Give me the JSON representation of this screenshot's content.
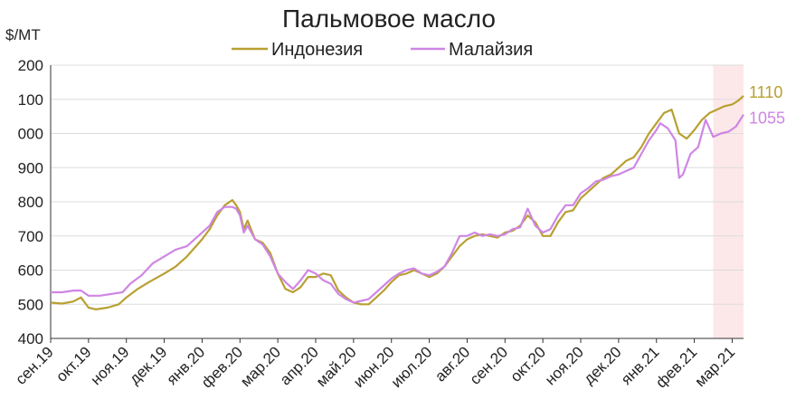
{
  "chart_data": {
    "type": "line",
    "title": "Пальмовое масло",
    "ylabel": "$/MT",
    "y_tick_labels": [
      "200",
      "100",
      "000",
      "900",
      "800",
      "700",
      "600",
      "500",
      "400"
    ],
    "ylim": [
      400,
      1200
    ],
    "x_tick_labels": [
      "сен.19",
      "окт.19",
      "ноя.19",
      "дек.19",
      "янв.20",
      "фев.20",
      "мар.20",
      "апр.20",
      "май.20",
      "июн.20",
      "июл.20",
      "авг.20",
      "сен.20",
      "окт.20",
      "ноя.20",
      "дек.20",
      "янв.21",
      "фев.21",
      "мар.21"
    ],
    "grid": "horizontal",
    "legend_position": "top",
    "highlight_region": {
      "from": 17.5,
      "to": 18.3,
      "color": "#fce8e8"
    },
    "series": [
      {
        "name": "Индонезия",
        "color": "#b8a032",
        "end_label": "1110",
        "points": [
          [
            0,
            505
          ],
          [
            0.3,
            502
          ],
          [
            0.6,
            508
          ],
          [
            0.8,
            520
          ],
          [
            1.0,
            490
          ],
          [
            1.2,
            485
          ],
          [
            1.5,
            490
          ],
          [
            1.8,
            500
          ],
          [
            2.0,
            520
          ],
          [
            2.3,
            545
          ],
          [
            2.6,
            565
          ],
          [
            3.0,
            590
          ],
          [
            3.3,
            610
          ],
          [
            3.6,
            640
          ],
          [
            4.0,
            690
          ],
          [
            4.2,
            720
          ],
          [
            4.4,
            760
          ],
          [
            4.6,
            790
          ],
          [
            4.8,
            805
          ],
          [
            4.9,
            790
          ],
          [
            5.0,
            770
          ],
          [
            5.1,
            720
          ],
          [
            5.2,
            745
          ],
          [
            5.4,
            690
          ],
          [
            5.6,
            680
          ],
          [
            5.8,
            650
          ],
          [
            6.0,
            590
          ],
          [
            6.2,
            545
          ],
          [
            6.4,
            535
          ],
          [
            6.6,
            550
          ],
          [
            6.8,
            580
          ],
          [
            7.0,
            580
          ],
          [
            7.2,
            590
          ],
          [
            7.4,
            585
          ],
          [
            7.6,
            540
          ],
          [
            7.8,
            520
          ],
          [
            8.0,
            505
          ],
          [
            8.2,
            500
          ],
          [
            8.4,
            500
          ],
          [
            8.6,
            520
          ],
          [
            8.8,
            540
          ],
          [
            9.0,
            565
          ],
          [
            9.2,
            585
          ],
          [
            9.4,
            590
          ],
          [
            9.6,
            600
          ],
          [
            9.8,
            590
          ],
          [
            10.0,
            580
          ],
          [
            10.2,
            590
          ],
          [
            10.4,
            610
          ],
          [
            10.6,
            640
          ],
          [
            10.8,
            670
          ],
          [
            11.0,
            690
          ],
          [
            11.2,
            700
          ],
          [
            11.4,
            705
          ],
          [
            11.6,
            700
          ],
          [
            11.8,
            695
          ],
          [
            12.0,
            710
          ],
          [
            12.2,
            715
          ],
          [
            12.4,
            730
          ],
          [
            12.6,
            760
          ],
          [
            12.8,
            740
          ],
          [
            13.0,
            700
          ],
          [
            13.2,
            700
          ],
          [
            13.4,
            740
          ],
          [
            13.6,
            770
          ],
          [
            13.8,
            775
          ],
          [
            14.0,
            810
          ],
          [
            14.2,
            830
          ],
          [
            14.4,
            850
          ],
          [
            14.6,
            870
          ],
          [
            14.8,
            880
          ],
          [
            15.0,
            900
          ],
          [
            15.2,
            920
          ],
          [
            15.4,
            930
          ],
          [
            15.6,
            960
          ],
          [
            15.8,
            1000
          ],
          [
            16.0,
            1030
          ],
          [
            16.2,
            1060
          ],
          [
            16.4,
            1070
          ],
          [
            16.6,
            1000
          ],
          [
            16.8,
            985
          ],
          [
            17.0,
            1010
          ],
          [
            17.2,
            1040
          ],
          [
            17.4,
            1060
          ],
          [
            17.6,
            1070
          ],
          [
            17.8,
            1080
          ],
          [
            18.0,
            1085
          ],
          [
            18.15,
            1095
          ],
          [
            18.3,
            1110
          ]
        ]
      },
      {
        "name": "Малайзия",
        "color": "#cf86e4",
        "end_label": "1055",
        "points": [
          [
            0,
            535
          ],
          [
            0.3,
            535
          ],
          [
            0.6,
            540
          ],
          [
            0.8,
            540
          ],
          [
            1.0,
            525
          ],
          [
            1.3,
            525
          ],
          [
            1.6,
            530
          ],
          [
            1.9,
            535
          ],
          [
            2.1,
            560
          ],
          [
            2.4,
            585
          ],
          [
            2.7,
            620
          ],
          [
            3.0,
            640
          ],
          [
            3.3,
            660
          ],
          [
            3.6,
            670
          ],
          [
            3.9,
            700
          ],
          [
            4.2,
            730
          ],
          [
            4.4,
            770
          ],
          [
            4.6,
            785
          ],
          [
            4.8,
            785
          ],
          [
            4.9,
            780
          ],
          [
            5.0,
            760
          ],
          [
            5.1,
            710
          ],
          [
            5.2,
            730
          ],
          [
            5.4,
            690
          ],
          [
            5.6,
            675
          ],
          [
            5.8,
            640
          ],
          [
            6.0,
            590
          ],
          [
            6.2,
            565
          ],
          [
            6.4,
            545
          ],
          [
            6.6,
            570
          ],
          [
            6.8,
            600
          ],
          [
            7.0,
            590
          ],
          [
            7.2,
            570
          ],
          [
            7.4,
            560
          ],
          [
            7.6,
            530
          ],
          [
            7.8,
            515
          ],
          [
            8.0,
            505
          ],
          [
            8.2,
            510
          ],
          [
            8.4,
            515
          ],
          [
            8.6,
            535
          ],
          [
            8.8,
            555
          ],
          [
            9.0,
            575
          ],
          [
            9.2,
            590
          ],
          [
            9.4,
            600
          ],
          [
            9.6,
            605
          ],
          [
            9.8,
            590
          ],
          [
            10.0,
            585
          ],
          [
            10.2,
            595
          ],
          [
            10.4,
            610
          ],
          [
            10.6,
            650
          ],
          [
            10.8,
            700
          ],
          [
            11.0,
            700
          ],
          [
            11.2,
            710
          ],
          [
            11.4,
            700
          ],
          [
            11.6,
            705
          ],
          [
            11.8,
            700
          ],
          [
            12.0,
            705
          ],
          [
            12.2,
            720
          ],
          [
            12.4,
            725
          ],
          [
            12.6,
            780
          ],
          [
            12.8,
            730
          ],
          [
            13.0,
            710
          ],
          [
            13.2,
            720
          ],
          [
            13.4,
            760
          ],
          [
            13.6,
            790
          ],
          [
            13.8,
            790
          ],
          [
            14.0,
            825
          ],
          [
            14.2,
            840
          ],
          [
            14.4,
            860
          ],
          [
            14.6,
            865
          ],
          [
            14.8,
            875
          ],
          [
            15.0,
            880
          ],
          [
            15.2,
            890
          ],
          [
            15.4,
            900
          ],
          [
            15.6,
            940
          ],
          [
            15.8,
            980
          ],
          [
            16.0,
            1010
          ],
          [
            16.1,
            1030
          ],
          [
            16.3,
            1015
          ],
          [
            16.5,
            980
          ],
          [
            16.6,
            870
          ],
          [
            16.7,
            880
          ],
          [
            16.9,
            940
          ],
          [
            17.1,
            960
          ],
          [
            17.3,
            1040
          ],
          [
            17.5,
            990
          ],
          [
            17.7,
            1000
          ],
          [
            17.9,
            1005
          ],
          [
            18.1,
            1020
          ],
          [
            18.3,
            1055
          ]
        ]
      }
    ]
  }
}
